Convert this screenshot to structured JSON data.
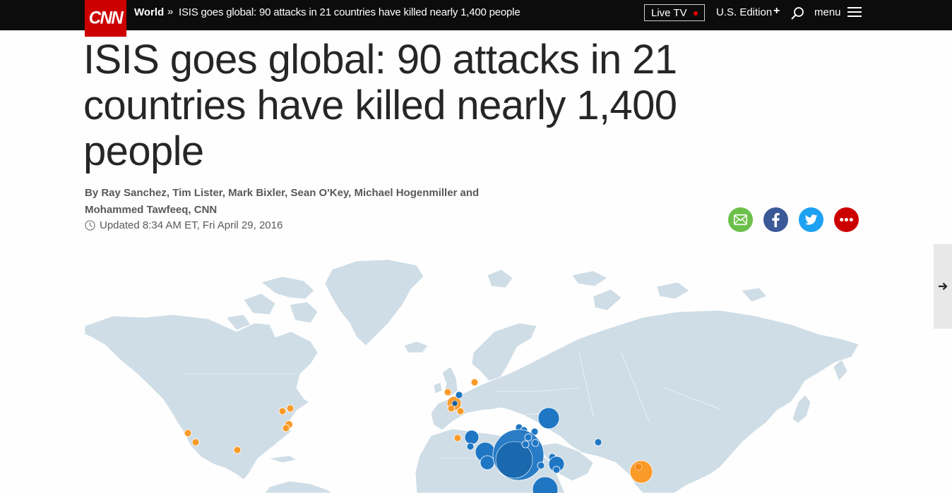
{
  "nav": {
    "logo": "CNN",
    "section": "World",
    "separator": "»",
    "title": "ISIS goes global: 90 attacks in 21 countries have killed nearly 1,400 people",
    "live_tv": "Live TV",
    "edition": "U.S. Edition",
    "edition_plus": "+",
    "menu": "menu",
    "icons": [
      "search-icon",
      "menu-icon"
    ]
  },
  "article": {
    "headline": "ISIS goes global: 90 attacks in 21 countries have killed nearly 1,400 people",
    "byline": "By Ray Sanchez, Tim Lister, Mark Bixler, Sean O'Key, Michael Hogenmiller and Mohammed Tawfeeq, CNN",
    "updated": "Updated 8:34 AM ET, Fri April 29, 2016"
  },
  "share": {
    "items": [
      "email-icon",
      "facebook-icon",
      "twitter-icon",
      "more-icon"
    ],
    "colors": {
      "email": "#6cc04a",
      "facebook": "#3b5998",
      "twitter": "#1da1f2",
      "more": "#cc0000"
    }
  },
  "map": {
    "colors": {
      "land": "#cfdde6",
      "orange": "#fa9a28",
      "blue": "#1f77c4"
    }
  },
  "side": {
    "icon": "arrow-right-icon"
  }
}
